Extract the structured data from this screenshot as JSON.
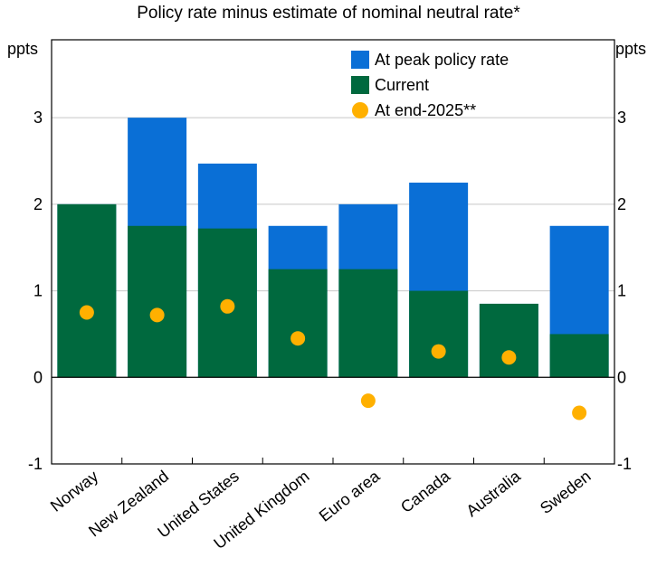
{
  "chart_data": {
    "type": "bar",
    "title": "Policy rate minus estimate of nominal neutral rate*",
    "ylabel_left": "ppts",
    "ylabel_right": "ppts",
    "ylim": [
      -1,
      3.9
    ],
    "yticks": [
      -1,
      0,
      1,
      2,
      3
    ],
    "grid": true,
    "legend_position": "top-right",
    "categories": [
      "Norway",
      "New Zealand",
      "United States",
      "United Kingdom",
      "Euro area",
      "Canada",
      "Australia",
      "Sweden"
    ],
    "series": [
      {
        "name": "At peak policy rate",
        "color": "#0a6fd6",
        "kind": "bar",
        "values": [
          2.0,
          3.0,
          2.47,
          1.75,
          2.0,
          2.25,
          0.85,
          1.75
        ]
      },
      {
        "name": "Current",
        "color": "#00693e",
        "kind": "bar",
        "values": [
          2.0,
          1.75,
          1.72,
          1.25,
          1.25,
          1.0,
          0.85,
          0.5
        ]
      },
      {
        "name": "At end-2025**",
        "color": "#ffb000",
        "kind": "scatter",
        "values": [
          0.75,
          0.72,
          0.82,
          0.45,
          -0.27,
          0.3,
          0.23,
          -0.41
        ]
      }
    ]
  }
}
